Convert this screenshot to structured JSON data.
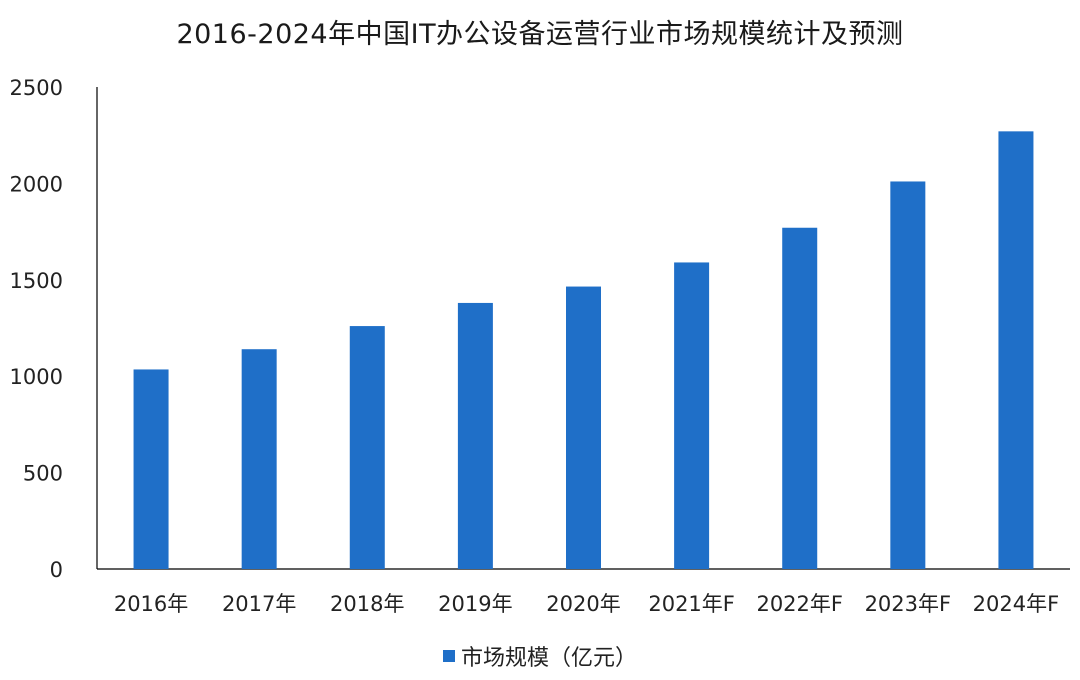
{
  "colors": {
    "bar": "#1f6fc8",
    "axis": "#000000",
    "text": "#222222"
  },
  "chart_data": {
    "type": "bar",
    "title": "2016-2024年中国IT办公设备运营行业市场规模统计及预测",
    "categories": [
      "2016年",
      "2017年",
      "2018年",
      "2019年",
      "2020年",
      "2021年F",
      "2022年F",
      "2023年F",
      "2024年F"
    ],
    "series": [
      {
        "name": "市场规模（亿元）",
        "values": [
          1035,
          1140,
          1260,
          1380,
          1465,
          1590,
          1770,
          2010,
          2270
        ]
      }
    ],
    "ylim": [
      0,
      2500
    ],
    "yticks": [
      0,
      500,
      1000,
      1500,
      2000,
      2500
    ],
    "grid": false,
    "legend": "bottom"
  }
}
